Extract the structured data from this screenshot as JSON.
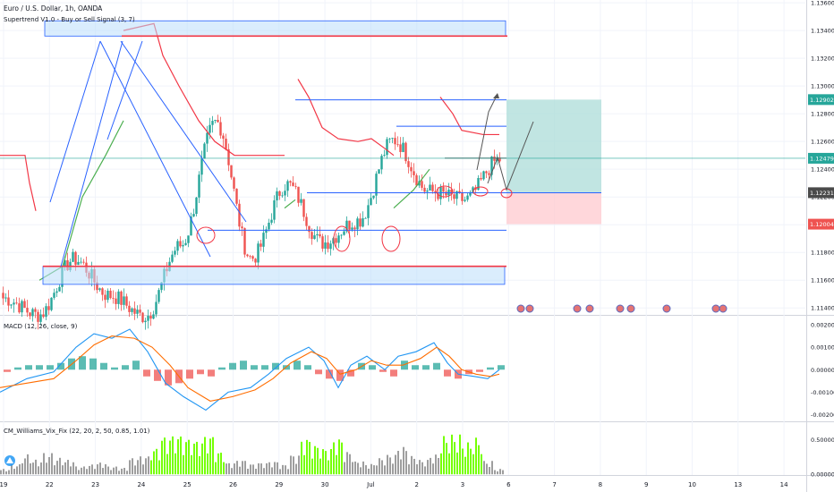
{
  "header": {
    "symbol_line": "Euro / U.S. Dollar, 1h, OANDA",
    "indicator_line": "Supertrend V1.0 - Buy or Sell Signal (3, 7)"
  },
  "macd_header": "MACD (12, 26, close, 9)",
  "vix_header": "CM_Williams_Vix_Fix (22, 20, 2, 50, 0.85, 1.01)",
  "colors": {
    "bull": "#26a69a",
    "bear": "#ef5350",
    "supertrend_up": "#4caf50",
    "supertrend_down": "#f23645",
    "blue_line": "#2962ff",
    "macd_line": "#2196f3",
    "signal_line": "#ff6d00",
    "vix_high": "#76ff03",
    "vix_normal": "#9e9e9e",
    "tp_zone": "#b2dfdb",
    "sl_zone": "#ffcdd2"
  },
  "chart_data": [
    {
      "type": "candlestick",
      "title": "Euro / U.S. Dollar, 1h, OANDA",
      "x_tick_labels": [
        "19",
        "22",
        "23",
        "24",
        "25",
        "26",
        "29",
        "30",
        "Jul",
        "2",
        "3",
        "6",
        "7",
        "8",
        "9",
        "10",
        "13",
        "14"
      ],
      "y_tick_labels": [
        "1.13600",
        "1.13400",
        "1.13200",
        "1.13000",
        "1.12800",
        "1.12600",
        "1.12400",
        "1.12200",
        "1.12000",
        "1.11800",
        "1.11600",
        "1.11400"
      ],
      "ylim": [
        1.1135,
        1.1362
      ],
      "price_badges": [
        {
          "label": "1.12902",
          "value": 1.12902,
          "color": "#26a69a"
        },
        {
          "label": "1.12479",
          "value": 1.12479,
          "color": "#26a69a"
        },
        {
          "label": "1.12231",
          "value": 1.12231,
          "color": "#4a4a4a"
        },
        {
          "label": "1.12004",
          "value": 1.12004,
          "color": "#ef5350"
        }
      ],
      "close_value": 1.12479,
      "key_prices": [
        1.1147,
        1.1135,
        1.1175,
        1.1149,
        1.1134,
        1.1185,
        1.1274,
        1.1176,
        1.1229,
        1.1187,
        1.1203,
        1.1261,
        1.1224,
        1.1218,
        1.1247
      ],
      "supertrend": [
        {
          "trend": "down",
          "points": [
            [
              0,
              1.125
            ],
            [
              28,
              1.125
            ],
            [
              33,
              1.123
            ],
            [
              40,
              1.121
            ]
          ]
        },
        {
          "trend": "up",
          "points": [
            [
              44,
              1.116
            ],
            [
              70,
              1.117
            ],
            [
              92,
              1.122
            ],
            [
              118,
              1.125
            ],
            [
              138,
              1.1275
            ]
          ]
        },
        {
          "trend": "down",
          "points": [
            [
              138,
              1.134
            ],
            [
              172,
              1.1345
            ],
            [
              182,
              1.1322
            ],
            [
              200,
              1.13
            ],
            [
              222,
              1.1275
            ],
            [
              240,
              1.126
            ],
            [
              262,
              1.125
            ],
            [
              300,
              1.125
            ],
            [
              318,
              1.125
            ]
          ]
        },
        {
          "trend": "up",
          "points": [
            [
              318,
              1.1212
            ],
            [
              330,
              1.1218
            ]
          ]
        },
        {
          "trend": "down",
          "points": [
            [
              333,
              1.1305
            ],
            [
              345,
              1.1292
            ],
            [
              360,
              1.127
            ],
            [
              378,
              1.1262
            ],
            [
              400,
              1.126
            ],
            [
              415,
              1.1262
            ],
            [
              430,
              1.1255
            ],
            [
              440,
              1.125
            ]
          ]
        },
        {
          "trend": "up",
          "points": [
            [
              440,
              1.1212
            ],
            [
              462,
              1.1225
            ],
            [
              480,
              1.124
            ]
          ]
        },
        {
          "trend": "down",
          "points": [
            [
              492,
              1.1292
            ],
            [
              506,
              1.128
            ],
            [
              516,
              1.1268
            ],
            [
              540,
              1.1265
            ],
            [
              558,
              1.1265
            ]
          ]
        }
      ],
      "drawings": {
        "top_box": [
          1.1347,
          1.1336
        ],
        "bottom_box": [
          1.117,
          1.1157
        ],
        "red_line_top": 1.1336,
        "red_line_bottom": 1.117,
        "range_top": 1.129,
        "range_upper_mid": 1.1271,
        "range_mid": 1.1248,
        "range_low": 1.1223,
        "support": 1.1196,
        "target_zone": [
          1.12902,
          1.12231
        ],
        "stop_zone": [
          1.12231,
          1.12004
        ]
      }
    },
    {
      "type": "line",
      "title": "MACD (12, 26, close, 9)",
      "y_tick_labels": [
        "0.00200",
        "0.00100",
        "0.00000",
        "-0.00100",
        "-0.00200"
      ],
      "ylim": [
        -0.0023,
        0.0024
      ],
      "series": [
        {
          "points": [
            [
              0,
              -0.001
            ],
            [
              30,
              -0.0004
            ],
            [
              60,
              -0.0001
            ],
            [
              85,
              0.001
            ],
            [
              105,
              0.0016
            ],
            [
              125,
              0.0014
            ],
            [
              145,
              0.0018
            ],
            [
              165,
              0.0008
            ],
            [
              185,
              -0.0006
            ],
            [
              205,
              -0.0012
            ],
            [
              230,
              -0.0018
            ],
            [
              255,
              -0.001
            ],
            [
              280,
              -0.0008
            ],
            [
              300,
              -0.0002
            ],
            [
              320,
              0.0005
            ],
            [
              345,
              0.001
            ],
            [
              362,
              0.0004
            ],
            [
              378,
              -0.0008
            ],
            [
              392,
              0.0002
            ],
            [
              410,
              0.0006
            ],
            [
              430,
              0.0
            ],
            [
              445,
              0.0006
            ],
            [
              465,
              0.0008
            ],
            [
              485,
              0.0012
            ],
            [
              500,
              0.0003
            ],
            [
              512,
              -0.0002
            ],
            [
              530,
              -0.0003
            ],
            [
              545,
              -0.0004
            ],
            [
              558,
              0.0
            ]
          ]
        },
        {
          "points": [
            [
              0,
              -0.0008
            ],
            [
              30,
              -0.0006
            ],
            [
              60,
              -0.0004
            ],
            [
              85,
              0.0004
            ],
            [
              105,
              0.0011
            ],
            [
              125,
              0.0015
            ],
            [
              150,
              0.0014
            ],
            [
              170,
              0.001
            ],
            [
              190,
              0.0002
            ],
            [
              210,
              -0.0008
            ],
            [
              235,
              -0.0014
            ],
            [
              260,
              -0.0012
            ],
            [
              285,
              -0.0009
            ],
            [
              305,
              -0.0004
            ],
            [
              325,
              0.0003
            ],
            [
              348,
              0.0008
            ],
            [
              365,
              0.0005
            ],
            [
              380,
              -0.0002
            ],
            [
              398,
              0.0
            ],
            [
              415,
              0.0004
            ],
            [
              432,
              0.0002
            ],
            [
              450,
              0.0002
            ],
            [
              470,
              0.0005
            ],
            [
              488,
              0.001
            ],
            [
              502,
              0.0006
            ],
            [
              516,
              0.0
            ],
            [
              532,
              -0.0002
            ],
            [
              548,
              -0.0003
            ],
            [
              558,
              -0.0002
            ]
          ]
        }
      ],
      "histogram": [
        [
          0,
          -0.0001
        ],
        [
          12,
          0.0001
        ],
        [
          24,
          0.0002
        ],
        [
          36,
          0.0002
        ],
        [
          48,
          0.0002
        ],
        [
          60,
          0.0003
        ],
        [
          72,
          0.0005
        ],
        [
          84,
          0.0006
        ],
        [
          96,
          0.0005
        ],
        [
          108,
          0.0003
        ],
        [
          120,
          0.0001
        ],
        [
          132,
          0.0002
        ],
        [
          144,
          0.0004
        ],
        [
          156,
          -0.0003
        ],
        [
          168,
          -0.0005
        ],
        [
          180,
          -0.0007
        ],
        [
          192,
          -0.0006
        ],
        [
          204,
          -0.0004
        ],
        [
          216,
          -0.0002
        ],
        [
          228,
          -0.0003
        ],
        [
          240,
          0.0001
        ],
        [
          252,
          0.0003
        ],
        [
          264,
          0.0004
        ],
        [
          276,
          0.0002
        ],
        [
          288,
          0.0002
        ],
        [
          300,
          0.0003
        ],
        [
          312,
          0.0002
        ],
        [
          324,
          0.0004
        ],
        [
          336,
          0.0002
        ],
        [
          348,
          -0.0002
        ],
        [
          360,
          -0.0004
        ],
        [
          372,
          -0.0005
        ],
        [
          384,
          -0.0003
        ],
        [
          396,
          0.0003
        ],
        [
          408,
          0.0002
        ],
        [
          420,
          -0.0001
        ],
        [
          432,
          -0.0003
        ],
        [
          444,
          0.0004
        ],
        [
          456,
          0.0002
        ],
        [
          468,
          0.0002
        ],
        [
          480,
          0.0003
        ],
        [
          492,
          -0.0003
        ],
        [
          504,
          -0.0004
        ],
        [
          516,
          -0.0002
        ],
        [
          528,
          -0.0001
        ],
        [
          540,
          0.0001
        ],
        [
          552,
          0.0002
        ]
      ]
    },
    {
      "type": "bar",
      "title": "CM_Williams_Vix_Fix (22, 20, 2, 50, 0.85, 1.01)",
      "y_tick_labels": [
        "0.50000",
        "0.00000"
      ],
      "ylim": [
        -0.01,
        0.75
      ],
      "bars": [
        [
          0,
          0.08
        ],
        [
          12,
          0.15
        ],
        [
          24,
          0.3
        ],
        [
          36,
          0.22
        ],
        [
          48,
          0.32
        ],
        [
          60,
          0.25
        ],
        [
          72,
          0.22
        ],
        [
          84,
          0.12
        ],
        [
          96,
          0.15
        ],
        [
          108,
          0.18
        ],
        [
          120,
          0.12
        ],
        [
          132,
          0.1
        ],
        [
          144,
          0.25
        ],
        [
          156,
          0.28
        ],
        [
          168,
          0.4
        ],
        [
          180,
          0.58
        ],
        [
          192,
          0.6
        ],
        [
          204,
          0.55
        ],
        [
          216,
          0.52
        ],
        [
          228,
          0.6
        ],
        [
          240,
          0.35
        ],
        [
          252,
          0.18
        ],
        [
          264,
          0.22
        ],
        [
          276,
          0.16
        ],
        [
          288,
          0.18
        ],
        [
          300,
          0.2
        ],
        [
          312,
          0.15
        ],
        [
          324,
          0.3
        ],
        [
          336,
          0.55
        ],
        [
          348,
          0.45
        ],
        [
          360,
          0.4
        ],
        [
          372,
          0.55
        ],
        [
          384,
          0.35
        ],
        [
          396,
          0.2
        ],
        [
          408,
          0.16
        ],
        [
          420,
          0.25
        ],
        [
          432,
          0.3
        ],
        [
          444,
          0.42
        ],
        [
          456,
          0.28
        ],
        [
          468,
          0.22
        ],
        [
          480,
          0.3
        ],
        [
          492,
          0.58
        ],
        [
          504,
          0.6
        ],
        [
          516,
          0.48
        ],
        [
          528,
          0.55
        ],
        [
          540,
          0.2
        ],
        [
          552,
          0.08
        ]
      ],
      "highlighted_spans": [
        [
          168,
          240
        ],
        [
          336,
          380
        ],
        [
          492,
          530
        ]
      ]
    }
  ]
}
